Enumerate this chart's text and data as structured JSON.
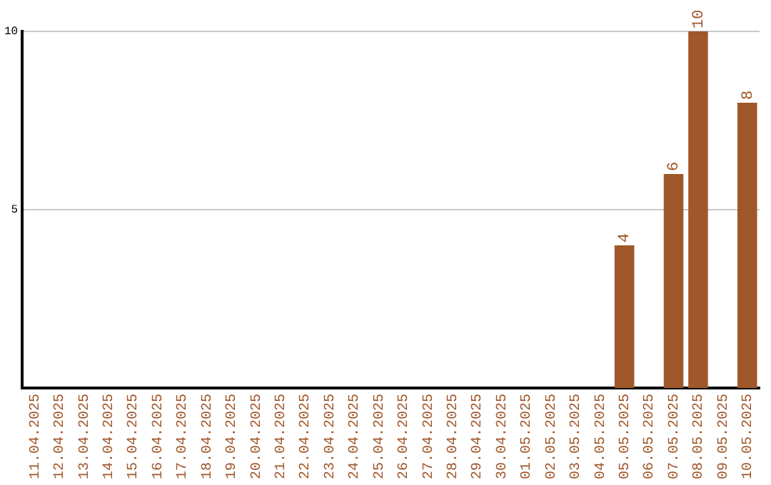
{
  "chart_data": {
    "type": "bar",
    "categories": [
      "11.04.2025",
      "12.04.2025",
      "13.04.2025",
      "14.04.2025",
      "15.04.2025",
      "16.04.2025",
      "17.04.2025",
      "18.04.2025",
      "19.04.2025",
      "20.04.2025",
      "21.04.2025",
      "22.04.2025",
      "23.04.2025",
      "24.04.2025",
      "25.04.2025",
      "26.04.2025",
      "27.04.2025",
      "28.04.2025",
      "29.04.2025",
      "30.04.2025",
      "01.05.2025",
      "02.05.2025",
      "03.05.2025",
      "04.05.2025",
      "05.05.2025",
      "06.05.2025",
      "07.05.2025",
      "08.05.2025",
      "09.05.2025",
      "10.05.2025"
    ],
    "values": [
      0,
      0,
      0,
      0,
      0,
      0,
      0,
      0,
      0,
      0,
      0,
      0,
      0,
      0,
      0,
      0,
      0,
      0,
      0,
      0,
      0,
      0,
      0,
      0,
      4,
      0,
      6,
      10,
      0,
      8
    ],
    "value_labels": [
      null,
      null,
      null,
      null,
      null,
      null,
      null,
      null,
      null,
      null,
      null,
      null,
      null,
      null,
      null,
      null,
      null,
      null,
      null,
      null,
      null,
      null,
      null,
      null,
      "4",
      null,
      "6",
      "10",
      null,
      "8"
    ],
    "color": "#a0572a",
    "ylim": [
      0,
      10
    ],
    "yticks": [
      5,
      10
    ],
    "grid": "y",
    "legend": false
  }
}
